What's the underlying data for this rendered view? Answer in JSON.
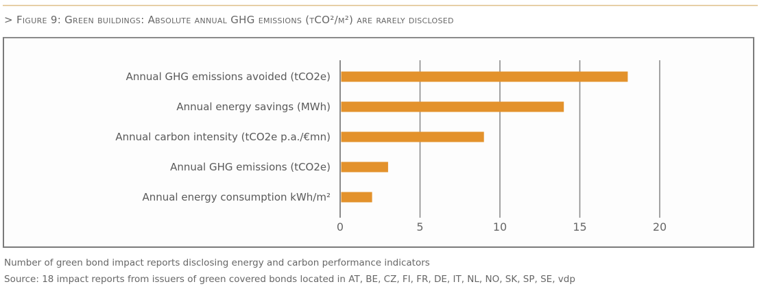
{
  "figure": {
    "prefix": "> ",
    "title": "Figure 9: Green buildings: Absolute annual GHG emissions (tCO²/m²) are rarely disclosed"
  },
  "colors": {
    "bar": "#e3922c",
    "gridline": "#8c8c8c",
    "rule": "#e6cfa6"
  },
  "chart_data": {
    "type": "bar",
    "orientation": "horizontal",
    "title": "Figure 9: Green buildings: Absolute annual GHG emissions (tCO²/m²) are rarely disclosed",
    "categories": [
      "Annual GHG emissions avoided (tCO2e)",
      "Annual energy savings (MWh)",
      "Annual carbon intensity (tCO2e p.a./€mn)",
      "Annual GHG emissions (tCO2e)",
      "Annual energy consumption kWh/m²"
    ],
    "values": [
      18,
      14,
      9,
      3,
      2
    ],
    "xlabel": "",
    "ylabel": "",
    "xlim": [
      0,
      20
    ],
    "xticks": [
      0,
      5,
      10,
      15,
      20
    ],
    "xtick_labels": [
      "0",
      "5",
      "10",
      "15",
      "20"
    ],
    "grid": "vertical",
    "legend": "none"
  },
  "notes": {
    "caption": "Number of green bond impact reports disclosing energy and carbon performance indicators",
    "source": "Source: 18 impact reports from issuers of green covered bonds located in AT, BE, CZ, FI, FR, DE, IT, NL, NO, SK, SP, SE, vdp"
  }
}
